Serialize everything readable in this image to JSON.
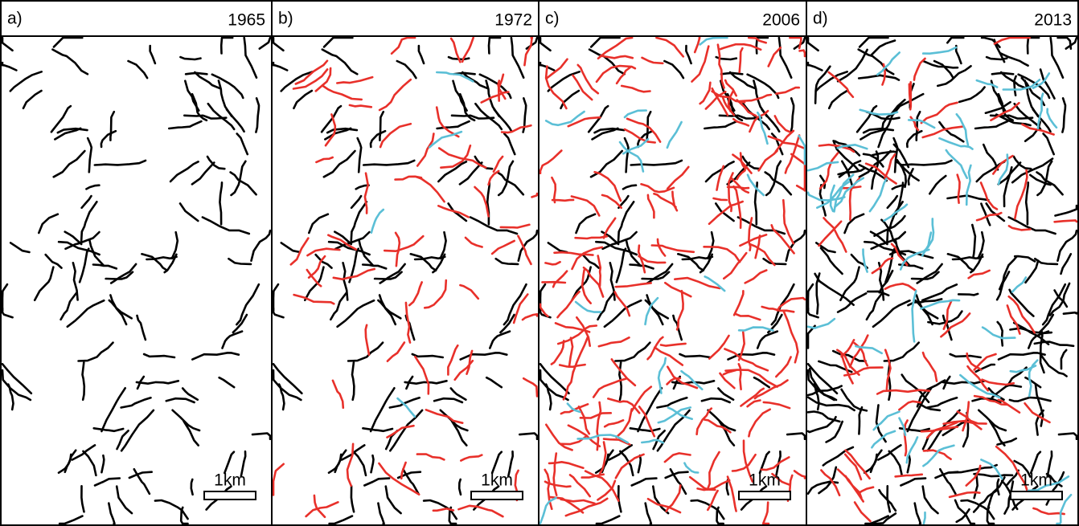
{
  "panels": [
    {
      "label": "a)",
      "year": "1965",
      "scale_label": "1km"
    },
    {
      "label": "b)",
      "year": "1972",
      "scale_label": "1km"
    },
    {
      "label": "c)",
      "year": "2006",
      "scale_label": "1km"
    },
    {
      "label": "d)",
      "year": "2013",
      "scale_label": "1km"
    }
  ]
}
